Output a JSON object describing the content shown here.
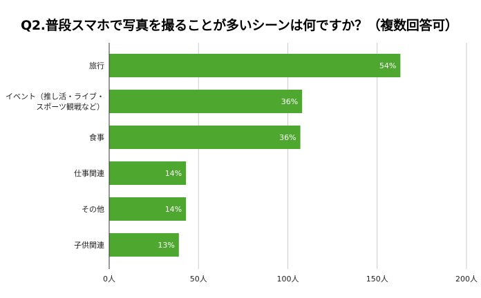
{
  "chart_data": {
    "type": "bar",
    "orientation": "horizontal",
    "title": "Q2.普段スマホで写真を撮ることが多いシーンは何ですか？（複数回答可）",
    "categories": [
      [
        "旅行"
      ],
      [
        "イベント（推し活・ライブ・",
        "スポーツ観戦など）"
      ],
      [
        "食事"
      ],
      [
        "仕事関連"
      ],
      [
        "その他"
      ],
      [
        "子供関連"
      ]
    ],
    "values": [
      163,
      108,
      107,
      43,
      43,
      39
    ],
    "data_labels": [
      "54%",
      "36%",
      "36%",
      "14%",
      "14%",
      "13%"
    ],
    "x_ticks": [
      "0人",
      "50人",
      "100人",
      "150人",
      "200人"
    ],
    "xlim": [
      0,
      200
    ],
    "grid": true,
    "bar_color": "#4ea72e",
    "grid_color": "#cccccc"
  }
}
